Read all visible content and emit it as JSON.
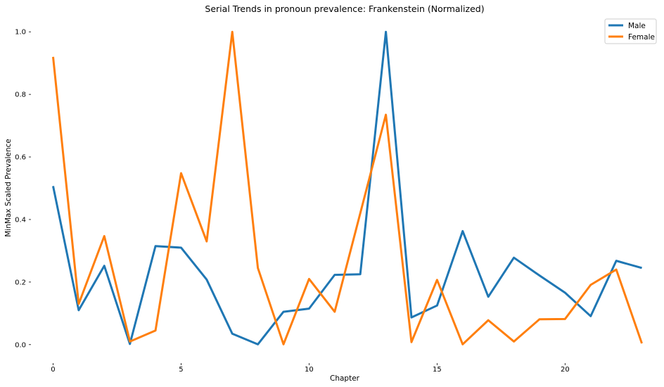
{
  "chart_data": {
    "type": "line",
    "title": "Serial Trends in pronoun prevalence: Frankenstein (Normalized)",
    "xlabel": "Chapter",
    "ylabel": "MinMax Scaled Prevalence",
    "xlim": [
      -0.7,
      23.7
    ],
    "ylim": [
      -0.05,
      1.05
    ],
    "xticks": [
      0,
      5,
      10,
      15,
      20
    ],
    "yticks": [
      0.0,
      0.2,
      0.4,
      0.6,
      0.8,
      1.0
    ],
    "ytick_labels": [
      "0.0",
      "0.2",
      "0.4",
      "0.6",
      "0.8",
      "1.0"
    ],
    "grid": false,
    "legend_position": "top-right",
    "x": [
      0,
      1,
      2,
      3,
      4,
      5,
      6,
      7,
      8,
      9,
      10,
      11,
      12,
      13,
      14,
      15,
      16,
      17,
      18,
      19,
      20,
      21,
      22,
      23
    ],
    "series": [
      {
        "name": "Male",
        "color": "#1f77b4",
        "values": [
          0.507,
          0.11,
          0.252,
          0.002,
          0.315,
          0.31,
          0.208,
          0.035,
          0.001,
          0.105,
          0.115,
          0.223,
          0.225,
          1.0,
          0.087,
          0.125,
          0.363,
          0.153,
          0.278,
          0.221,
          0.166,
          0.091,
          0.268,
          0.245
        ]
      },
      {
        "name": "Female",
        "color": "#ff7f0e",
        "values": [
          0.92,
          0.13,
          0.347,
          0.01,
          0.045,
          0.548,
          0.33,
          1.0,
          0.245,
          0.001,
          0.21,
          0.105,
          0.42,
          0.735,
          0.008,
          0.207,
          0.001,
          0.078,
          0.01,
          0.081,
          0.082,
          0.191,
          0.24,
          0.004
        ]
      }
    ]
  }
}
